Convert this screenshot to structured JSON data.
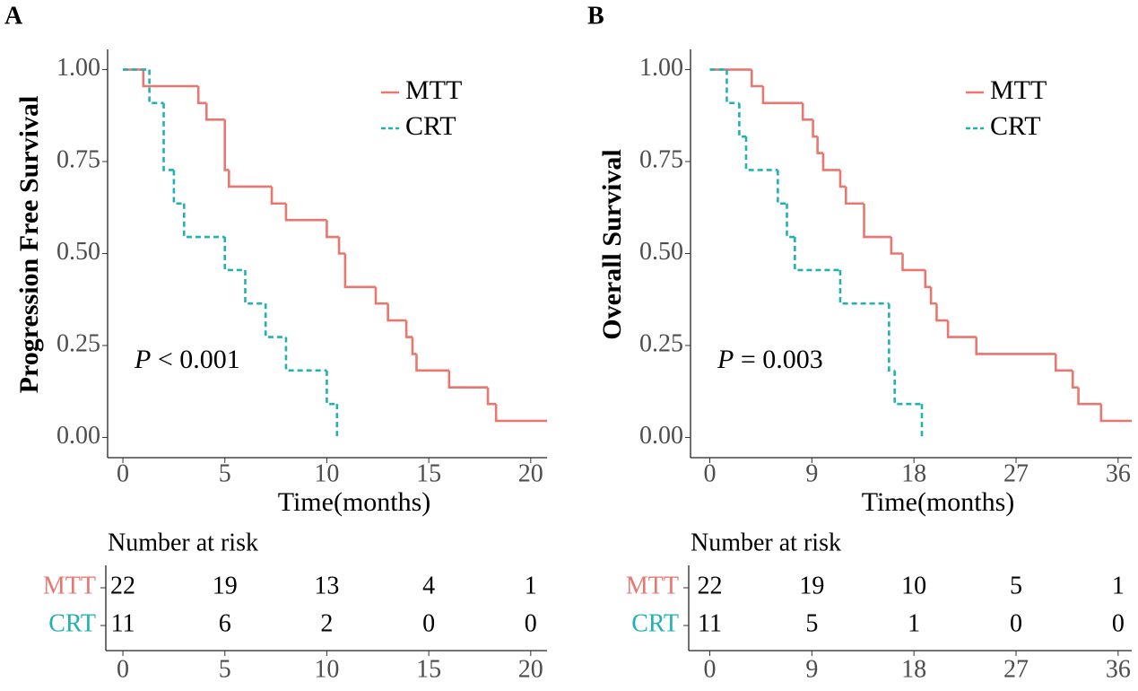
{
  "chart_data": [
    {
      "type": "survival",
      "panel_label": "A",
      "ylabel": "Progression Free Survival",
      "xlabel": "Time(months)",
      "xlim": [
        -0.75,
        20.8
      ],
      "ylim": [
        -0.055,
        1.055
      ],
      "xticks": [
        0,
        5,
        10,
        15,
        20
      ],
      "yticks": [
        {
          "value": 0,
          "label": "0.00"
        },
        {
          "value": 0.25,
          "label": "0.25"
        },
        {
          "value": 0.5,
          "label": "0.50"
        },
        {
          "value": 0.75,
          "label": "0.75"
        },
        {
          "value": 1,
          "label": "1.00"
        }
      ],
      "legend": "top-right",
      "annotation": {
        "italic": "P",
        "text": "< 0.001"
      },
      "series": [
        {
          "name": "MTT",
          "color": "#E8776F",
          "line_style": "solid",
          "x": [
            0,
            1,
            3.7,
            4.1,
            5,
            5.2,
            7.3,
            8,
            10,
            10.6,
            10.9,
            12.4,
            13,
            13.9,
            14.2,
            14.4,
            16,
            17.9,
            18.3,
            20.8
          ],
          "values": [
            1,
            0.955,
            0.909,
            0.864,
            0.727,
            0.682,
            0.636,
            0.591,
            0.545,
            0.5,
            0.409,
            0.364,
            0.318,
            0.273,
            0.227,
            0.182,
            0.136,
            0.091,
            0.045,
            0.045
          ]
        },
        {
          "name": "CRT",
          "color": "#20B2B0",
          "line_style": "dashed",
          "x": [
            0,
            1.3,
            2,
            2.5,
            3,
            5,
            6,
            7,
            8,
            10,
            10.5
          ],
          "values": [
            1,
            0.909,
            0.727,
            0.636,
            0.545,
            0.455,
            0.364,
            0.273,
            0.182,
            0.091,
            0
          ]
        }
      ],
      "risk_table": {
        "title": "Number at risk",
        "rows": [
          {
            "name": "MTT",
            "color": "#E8776F",
            "values": [
              22,
              19,
              13,
              4,
              1
            ]
          },
          {
            "name": "CRT",
            "color": "#20B2B0",
            "values": [
              11,
              6,
              2,
              0,
              0
            ]
          }
        ]
      }
    },
    {
      "type": "survival",
      "panel_label": "B",
      "ylabel": "Overall Survival",
      "xlabel": "Time(months)",
      "xlim": [
        -1.7,
        37.2
      ],
      "ylim": [
        -0.055,
        1.055
      ],
      "xticks": [
        0,
        9,
        18,
        27,
        36
      ],
      "yticks": [
        {
          "value": 0,
          "label": "0.00"
        },
        {
          "value": 0.25,
          "label": "0.25"
        },
        {
          "value": 0.5,
          "label": "0.50"
        },
        {
          "value": 0.75,
          "label": "0.75"
        },
        {
          "value": 1,
          "label": "1.00"
        }
      ],
      "legend": "top-right",
      "annotation": {
        "italic": "P",
        "text": "= 0.003"
      },
      "series": [
        {
          "name": "MTT",
          "color": "#E8776F",
          "line_style": "solid",
          "x": [
            0,
            3.7,
            4.7,
            8.2,
            9.1,
            9.5,
            10,
            11.5,
            12,
            13.6,
            16,
            17,
            19,
            19.5,
            20,
            21,
            23.5,
            30.5,
            32,
            32.5,
            34.5,
            37.2
          ],
          "values": [
            1,
            0.955,
            0.909,
            0.864,
            0.818,
            0.773,
            0.727,
            0.682,
            0.636,
            0.545,
            0.5,
            0.455,
            0.409,
            0.364,
            0.318,
            0.273,
            0.227,
            0.182,
            0.136,
            0.091,
            0.045,
            0.045
          ]
        },
        {
          "name": "CRT",
          "color": "#20B2B0",
          "line_style": "dashed",
          "x": [
            0,
            1.5,
            2.6,
            3.2,
            6,
            6.8,
            7.5,
            11.5,
            15.8,
            16.3,
            18.7
          ],
          "values": [
            1,
            0.909,
            0.818,
            0.727,
            0.636,
            0.545,
            0.455,
            0.364,
            0.182,
            0.091,
            0
          ]
        }
      ],
      "risk_table": {
        "title": "Number at risk",
        "rows": [
          {
            "name": "MTT",
            "color": "#E8776F",
            "values": [
              22,
              19,
              10,
              5,
              1
            ]
          },
          {
            "name": "CRT",
            "color": "#20B2B0",
            "values": [
              11,
              5,
              1,
              0,
              0
            ]
          }
        ]
      }
    }
  ]
}
